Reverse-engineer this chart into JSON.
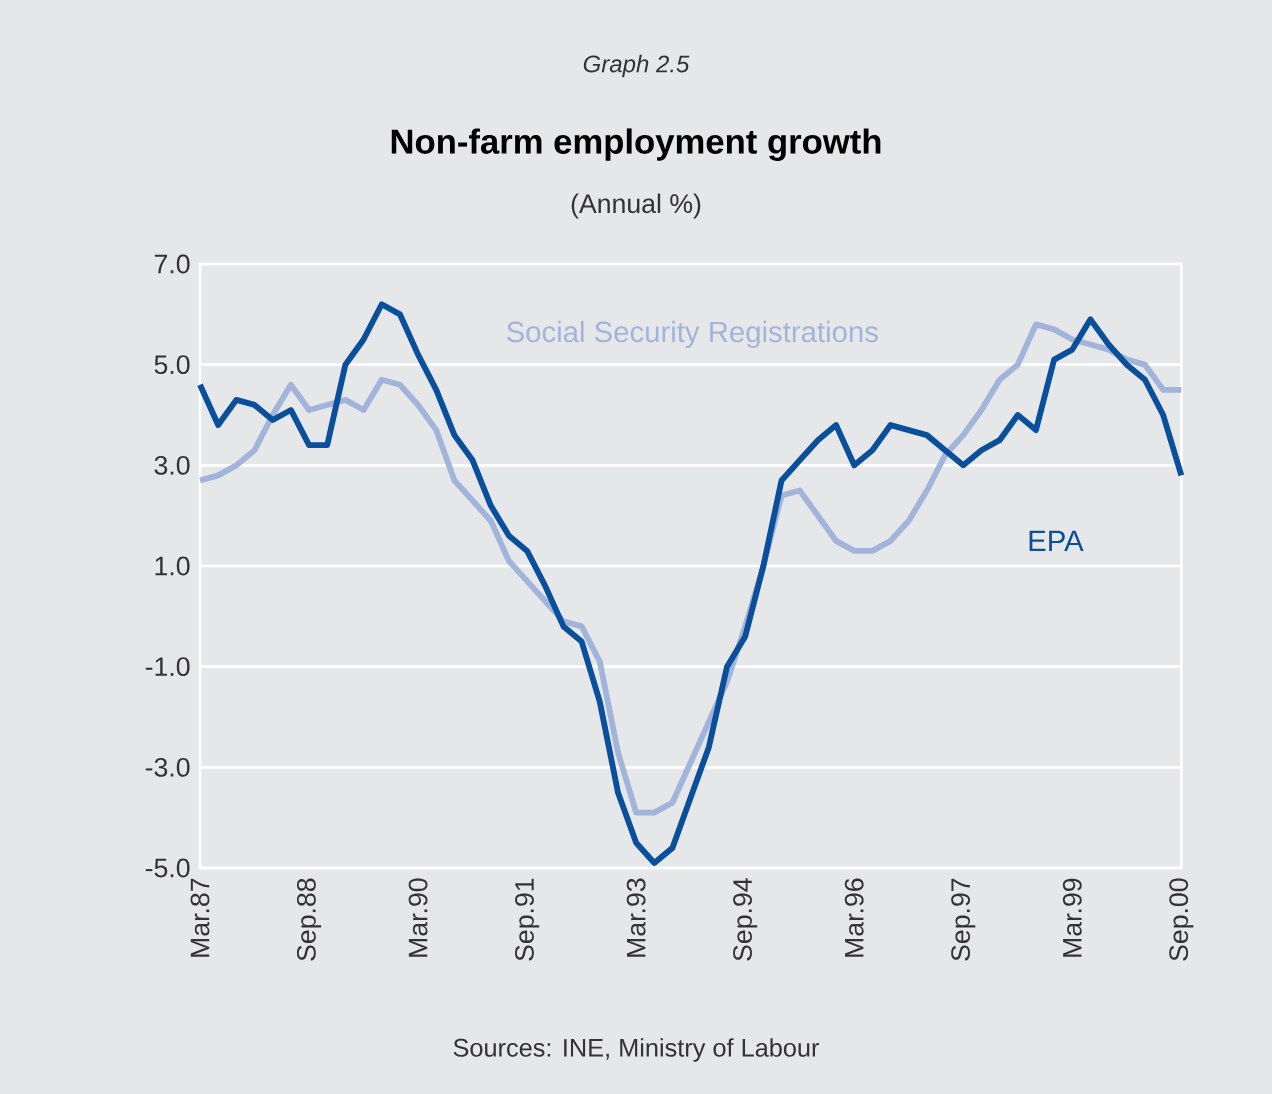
{
  "chart_data": {
    "type": "line",
    "title": "Non-farm employment growth",
    "subtitle": "(Annual %)",
    "annotations": [
      "Graph 2.5",
      "Sources: INE, Ministry of Labour"
    ],
    "categories": [
      "Mar.87",
      null,
      null,
      null,
      null,
      null,
      "Sep.88",
      null,
      null,
      null,
      null,
      null,
      "Mar.90",
      null,
      null,
      null,
      null,
      null,
      "Sep.91",
      null,
      null,
      null,
      null,
      null,
      "Mar.93",
      null,
      null,
      null,
      null,
      null,
      "Sep.94",
      null,
      null,
      null,
      null,
      null,
      "Mar.96",
      null,
      null,
      null,
      null,
      null,
      "Sep.97",
      null,
      null,
      null,
      null,
      null,
      "Mar.99",
      null,
      null,
      null,
      null,
      null,
      "Sep.00"
    ],
    "series": [
      {
        "name": "Social Security Registrations",
        "color": "#a3b4db",
        "values": [
          2.7,
          2.8,
          3.0,
          3.3,
          4.0,
          4.6,
          4.1,
          4.2,
          4.3,
          4.1,
          4.7,
          4.6,
          4.2,
          3.7,
          2.7,
          2.3,
          1.9,
          1.1,
          0.7,
          0.3,
          -0.1,
          -0.2,
          -0.9,
          -2.7,
          -3.9,
          -3.9,
          -3.7,
          -2.9,
          -2.1,
          -1.3,
          -0.2,
          1.0,
          2.4,
          2.5,
          2.0,
          1.5,
          1.3,
          1.3,
          1.5,
          1.9,
          2.5,
          3.2,
          3.6,
          4.1,
          4.7,
          5.0,
          5.8,
          5.7,
          5.5,
          5.4,
          5.3,
          5.1,
          5.0,
          4.5,
          4.5
        ]
      },
      {
        "name": "EPA",
        "color": "#0a4f9c",
        "values": [
          4.6,
          3.8,
          4.3,
          4.2,
          3.9,
          4.1,
          3.4,
          3.4,
          5.0,
          5.5,
          6.2,
          6.0,
          5.2,
          4.5,
          3.6,
          3.1,
          2.2,
          1.6,
          1.3,
          0.6,
          -0.2,
          -0.5,
          -1.7,
          -3.5,
          -4.5,
          -4.9,
          -4.6,
          -3.6,
          -2.6,
          -1.0,
          -0.4,
          1.0,
          2.7,
          3.1,
          3.5,
          3.8,
          3.0,
          3.3,
          3.8,
          3.7,
          3.6,
          3.3,
          3.0,
          3.3,
          3.5,
          4.0,
          3.7,
          5.1,
          5.3,
          5.9,
          5.4,
          5.0,
          4.7,
          4.0,
          2.8
        ]
      }
    ],
    "ylim": [
      -5,
      7
    ],
    "yticks": [
      {
        "value": 7,
        "label": "7.0"
      },
      {
        "value": 5,
        "label": "5.0"
      },
      {
        "value": 3,
        "label": "3.0"
      },
      {
        "value": 1,
        "label": "1.0"
      },
      {
        "value": -1,
        "label": "-1.0"
      },
      {
        "value": -3,
        "label": "-3.0"
      },
      {
        "value": -5,
        "label": "-5.0"
      }
    ],
    "grid": "y",
    "legend": false,
    "line_style": "solid",
    "marker": "none"
  }
}
